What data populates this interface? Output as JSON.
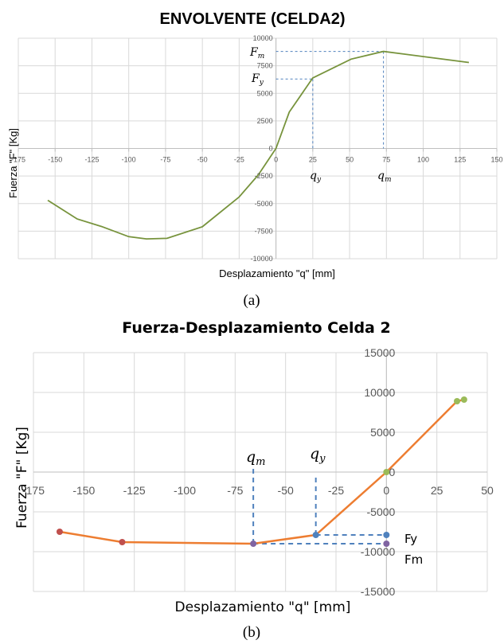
{
  "chart_data": [
    {
      "type": "line",
      "title": "ENVOLVENTE (CELDA2)",
      "xlabel": "Desplazamiento \"q\" [mm]",
      "ylabel": "Fuerza \"F\" [Kg]",
      "xlim": [
        -175,
        150
      ],
      "ylim": [
        -10000,
        10000
      ],
      "xticks": [
        "-175",
        "-150",
        "-125",
        "-100",
        "-75",
        "-50",
        "-25",
        "0",
        "25",
        "50",
        "75",
        "100",
        "125",
        "150"
      ],
      "yticks": [
        "-10000",
        "-7500",
        "-5000",
        "-2500",
        "0",
        "2500",
        "5000",
        "7500",
        "10000"
      ],
      "grid": true,
      "line_color": "#77933c",
      "series": [
        {
          "x": [
            -155,
            -135,
            -118,
            -100,
            -88,
            -74,
            -50,
            -25,
            -12,
            -5,
            0,
            9,
            25,
            51,
            73,
            131
          ],
          "y": [
            -4700,
            -6400,
            -7100,
            -8000,
            -8200,
            -8150,
            -7100,
            -4400,
            -2400,
            -1000,
            0,
            3300,
            6400,
            8100,
            8800,
            7800
          ]
        }
      ],
      "annotations": {
        "Fm_label": "F_m",
        "Fy_label": "F_y",
        "qy_label": "q_y",
        "qm_label": "q_m",
        "Fm_value": 8800,
        "Fy_value": 6300,
        "qy_value": 25,
        "qm_value": 73
      },
      "caption": "(a)"
    },
    {
      "type": "line",
      "title": "Fuerza-Desplazamiento Celda 2",
      "xlabel": "Desplazamiento \"q\" [mm]",
      "ylabel": "Fuerza \"F\" [Kg]",
      "xlim": [
        -175,
        50
      ],
      "ylim": [
        -15000,
        15000
      ],
      "xticks": [
        "-175",
        "-150",
        "-125",
        "-100",
        "-75",
        "-50",
        "-25",
        "0",
        "25",
        "50"
      ],
      "yticks": [
        "-15000",
        "-10000",
        "-5000",
        "0",
        "5000",
        "10000",
        "15000"
      ],
      "grid": true,
      "line_color": "#ed7d31",
      "series": [
        {
          "x": [
            -162,
            -131,
            -66,
            -35,
            0,
            35,
            38.5
          ],
          "y": [
            -7500,
            -8800,
            -9000,
            -7900,
            0,
            8900,
            9100
          ]
        }
      ],
      "markers": [
        {
          "x": -162,
          "y": -7500,
          "color": "#c0504d"
        },
        {
          "x": -131,
          "y": -8800,
          "color": "#c0504d"
        },
        {
          "x": -66,
          "y": -9000,
          "color": "#8064a2"
        },
        {
          "x": -35,
          "y": -7900,
          "color": "#4f81bd"
        },
        {
          "x": 0,
          "y": -7900,
          "color": "#4f81bd"
        },
        {
          "x": 0,
          "y": -9000,
          "color": "#8064a2"
        },
        {
          "x": 0,
          "y": 0,
          "color": "#9bbb59"
        },
        {
          "x": 35,
          "y": 8900,
          "color": "#9bbb59"
        },
        {
          "x": 38.5,
          "y": 9100,
          "color": "#9bbb59"
        }
      ],
      "annotations": {
        "Fy_label": "Fy",
        "Fm_label": "Fm",
        "qy_label": "q_y",
        "qm_label": "q_m",
        "qy_value": -35,
        "qm_value": -66,
        "Fy_value": -7900,
        "Fm_value": -9000
      },
      "caption": "(b)"
    }
  ]
}
